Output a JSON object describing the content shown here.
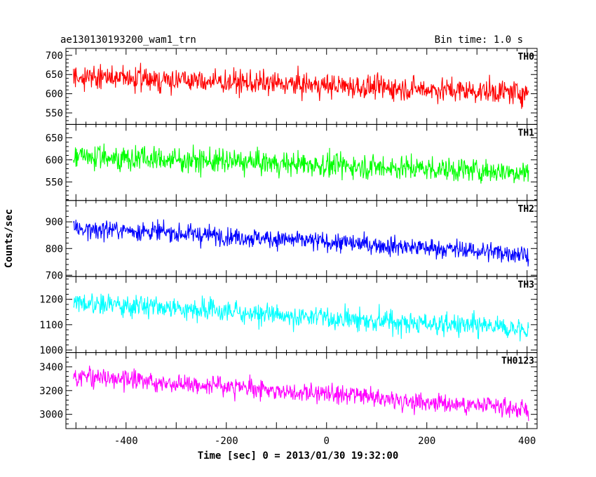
{
  "chart_data": {
    "type": "line",
    "title": "ae130130193200_wam1_trn",
    "subtitle": "Bin time: 1.0 s",
    "xlabel": "Time [sec] 0 = 2013/01/30 19:32:00",
    "ylabel": "Counts/sec",
    "xlim": [
      -520,
      420
    ],
    "x_ticks": [
      -400,
      -200,
      0,
      200,
      400
    ],
    "grid": false,
    "panels": [
      {
        "name": "TH0",
        "color": "#ff0000",
        "ylim": [
          520,
          718
        ],
        "y_ticks": [
          550,
          600,
          650,
          700
        ],
        "x_range": [
          -505,
          403
        ],
        "mean_start": 645,
        "mean_end": 602,
        "noise": 26
      },
      {
        "name": "TH1",
        "color": "#00ff00",
        "ylim": [
          508,
          680
        ],
        "y_ticks": [
          550,
          600,
          650
        ],
        "x_range": [
          -505,
          403
        ],
        "mean_start": 608,
        "mean_end": 572,
        "noise": 23
      },
      {
        "name": "TH2",
        "color": "#0000ff",
        "ylim": [
          695,
          980
        ],
        "y_ticks": [
          700,
          800,
          900
        ],
        "x_range": [
          -505,
          403
        ],
        "mean_start": 880,
        "mean_end": 780,
        "noise": 30
      },
      {
        "name": "TH3",
        "color": "#00ffff",
        "ylim": [
          990,
          1290
        ],
        "y_ticks": [
          1000,
          1100,
          1200
        ],
        "x_range": [
          -505,
          403
        ],
        "mean_start": 1185,
        "mean_end": 1080,
        "noise": 38
      },
      {
        "name": "TH0123",
        "color": "#ff00ff",
        "ylim": [
          2880,
          3520
        ],
        "y_ticks": [
          3000,
          3200,
          3400
        ],
        "x_range": [
          -505,
          403
        ],
        "mean_start": 3330,
        "mean_end": 3040,
        "noise": 65
      }
    ]
  }
}
